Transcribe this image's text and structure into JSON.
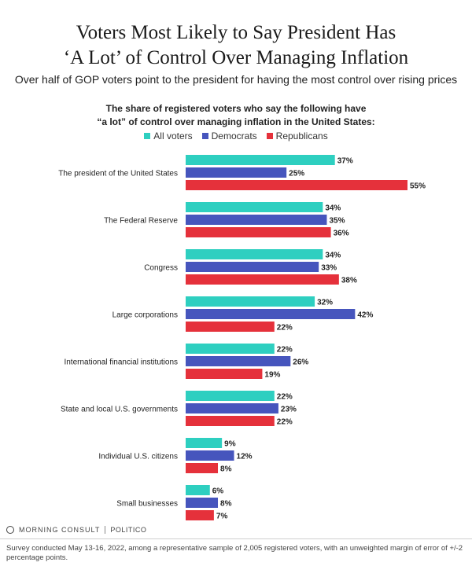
{
  "title_line1": "Voters Most Likely to Say President Has",
  "title_line2": "‘A Lot’ of Control Over Managing Inflation",
  "subtitle": "Over half of GOP voters point to the president for having the most control over rising prices",
  "chart_heading_line1": "The share of registered voters who say the following have",
  "chart_heading_line2": "“a lot” of control over managing inflation in the United States:",
  "brand": {
    "morning_consult": "MORNING CONSULT",
    "politico": "POLITICO"
  },
  "footnote": "Survey conducted May 13-16, 2022, among a representative sample of 2,005 registered voters, with an unweighted margin of error of +/-2 percentage points.",
  "colors": {
    "all_voters": "#2ecfc0",
    "democrats": "#4655bd",
    "republicans": "#e5313b"
  },
  "chart_data": {
    "type": "bar",
    "orientation": "horizontal",
    "categories": [
      "The president of the United States",
      "The Federal Reserve",
      "Congress",
      "Large corporations",
      "International financial institutions",
      "State and local U.S. governments",
      "Individual U.S. citizens",
      "Small businesses"
    ],
    "series": [
      {
        "name": "All voters",
        "color": "#2ecfc0",
        "values": [
          37,
          34,
          34,
          32,
          22,
          22,
          9,
          6
        ]
      },
      {
        "name": "Democrats",
        "color": "#4655bd",
        "values": [
          25,
          35,
          33,
          42,
          26,
          23,
          12,
          8
        ]
      },
      {
        "name": "Republicans",
        "color": "#e5313b",
        "values": [
          55,
          36,
          38,
          22,
          19,
          22,
          8,
          7
        ]
      }
    ],
    "value_suffix": "%",
    "xlim": [
      0,
      60
    ],
    "grid": false,
    "legend_position": "top-center"
  }
}
